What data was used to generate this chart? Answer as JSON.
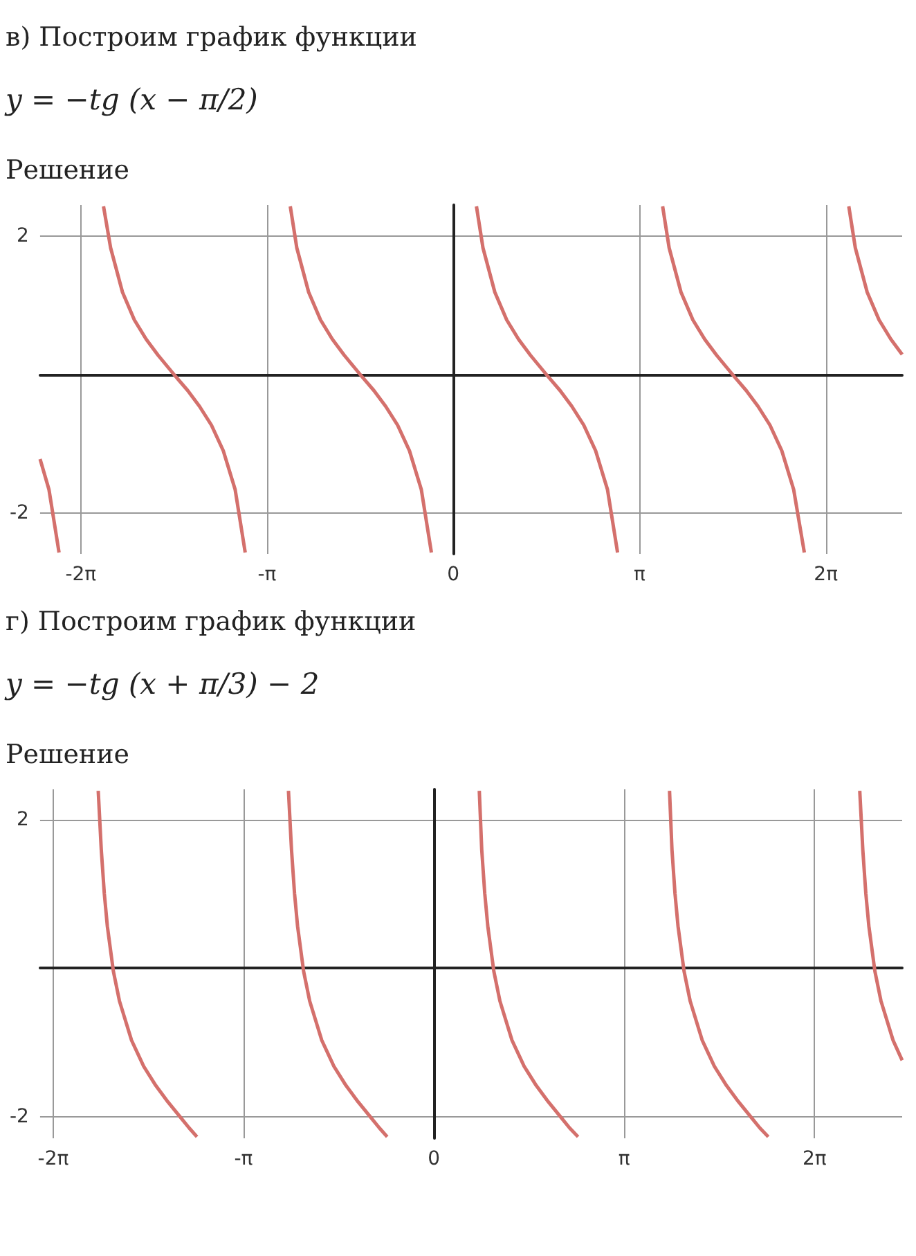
{
  "chart_data": [
    {
      "type": "line",
      "title": "в) Построим график функции",
      "subtitle": "y = −tg (x − π/2)",
      "annotations": [
        "Решение"
      ],
      "marker": "none",
      "grid": true,
      "xlim": [
        -6.97,
        7.57
      ],
      "ylim": [
        -2.59,
        2.45
      ],
      "xticks": [
        {
          "value": -6.283,
          "label": "-2π"
        },
        {
          "value": -3.142,
          "label": "-π"
        },
        {
          "value": 0,
          "label": "0"
        },
        {
          "value": 3.142,
          "label": "π"
        },
        {
          "value": 6.283,
          "label": "2π"
        }
      ],
      "yticks": [
        {
          "value": -2,
          "label": "-2"
        },
        {
          "value": 0,
          "label": null
        },
        {
          "value": 2,
          "label": "2"
        }
      ],
      "series": [
        {
          "color": "#d4706c",
          "x": [
            -6.97,
            -6.82,
            -6.65,
            -6.28,
            -5.9,
            -5.78,
            -5.58,
            -5.38,
            -5.18,
            -4.98,
            -4.71,
            -4.48,
            -4.28,
            -4.08,
            -3.88,
            -3.68,
            -3.51,
            -3.14,
            -2.75,
            -2.64,
            -2.44,
            -2.24,
            -2.04,
            -1.84,
            -1.57,
            -1.34,
            -1.14,
            -0.94,
            -0.74,
            -0.54,
            -0.37,
            0,
            0.39,
            0.5,
            0.7,
            0.9,
            1.1,
            1.3,
            1.57,
            1.8,
            2.0,
            2.2,
            2.4,
            2.6,
            2.77,
            3.14,
            3.53,
            3.64,
            3.84,
            4.04,
            4.24,
            4.44,
            4.71,
            4.94,
            5.14,
            5.34,
            5.54,
            5.74,
            5.92,
            6.28,
            6.67,
            6.78,
            6.98,
            7.18,
            7.38,
            7.57
          ],
          "values": [
            -1.22,
            -1.66,
            -2.57,
            null,
            2.43,
            1.83,
            1.19,
            0.79,
            0.51,
            0.28,
            0,
            -0.23,
            -0.46,
            -0.73,
            -1.1,
            -1.66,
            -2.57,
            null,
            2.43,
            1.83,
            1.19,
            0.79,
            0.51,
            0.28,
            0,
            -0.23,
            -0.46,
            -0.73,
            -1.1,
            -1.66,
            -2.57,
            null,
            2.43,
            1.83,
            1.19,
            0.79,
            0.51,
            0.28,
            0,
            -0.23,
            -0.46,
            -0.73,
            -1.1,
            -1.66,
            -2.57,
            null,
            2.43,
            1.83,
            1.19,
            0.79,
            0.51,
            0.28,
            0,
            -0.23,
            -0.46,
            -0.73,
            -1.1,
            -1.66,
            -2.57,
            null,
            2.43,
            1.83,
            1.19,
            0.79,
            0.51,
            0.29
          ]
        }
      ]
    },
    {
      "type": "line",
      "title": "г) Построим график функции",
      "subtitle": "y = −tg (x + π/3) − 2",
      "annotations": [
        "Решение"
      ],
      "marker": "none",
      "grid": true,
      "xlim": [
        -6.5,
        7.73
      ],
      "ylim": [
        -2.29,
        2.41
      ],
      "xticks": [
        {
          "value": -6.283,
          "label": "-2π"
        },
        {
          "value": -3.142,
          "label": "-π"
        },
        {
          "value": 0,
          "label": "0"
        },
        {
          "value": 3.142,
          "label": "π"
        },
        {
          "value": 6.283,
          "label": "2π"
        }
      ],
      "yticks": [
        {
          "value": -2,
          "label": "-2"
        },
        {
          "value": 0,
          "label": null
        },
        {
          "value": 2,
          "label": "2"
        }
      ],
      "series": [
        {
          "color": "#d4706c",
          "x": [
            -5.54,
            -5.49,
            -5.44,
            -5.39,
            -5.29,
            -5.19,
            -4.99,
            -4.79,
            -4.59,
            -4.39,
            -4.19,
            -4.04,
            -3.91,
            -3.67,
            -2.4,
            -2.35,
            -2.3,
            -2.25,
            -2.15,
            -2.05,
            -1.85,
            -1.65,
            -1.45,
            -1.25,
            -1.05,
            -0.9,
            -0.77,
            0.52,
            0.75,
            0.79,
            0.84,
            0.89,
            0.99,
            1.09,
            1.29,
            1.49,
            1.69,
            1.89,
            2.09,
            2.24,
            2.38,
            3.67,
            3.89,
            3.93,
            3.98,
            4.03,
            4.13,
            4.23,
            4.43,
            4.63,
            4.83,
            5.03,
            5.23,
            5.38,
            5.52,
            6.81,
            7.03,
            7.08,
            7.13,
            7.18,
            7.28,
            7.38,
            7.58,
            7.73
          ],
          "values": [
            2.39,
            1.6,
            1.01,
            0.57,
            -0.04,
            -0.44,
            -0.97,
            -1.32,
            -1.58,
            -1.8,
            -2,
            -2.15,
            -2.27,
            null,
            2.39,
            1.6,
            1.01,
            0.57,
            -0.04,
            -0.44,
            -0.97,
            -1.32,
            -1.58,
            -1.8,
            -2,
            -2.15,
            -2.27,
            null,
            2.39,
            1.6,
            1.01,
            0.57,
            -0.04,
            -0.44,
            -0.97,
            -1.32,
            -1.58,
            -1.8,
            -2,
            -2.15,
            -2.27,
            null,
            2.39,
            1.6,
            1.01,
            0.57,
            -0.04,
            -0.44,
            -0.97,
            -1.32,
            -1.58,
            -1.8,
            -2,
            -2.15,
            -2.27,
            null,
            2.39,
            1.6,
            1.01,
            0.57,
            -0.04,
            -0.44,
            -0.97,
            -1.24
          ]
        }
      ]
    }
  ]
}
